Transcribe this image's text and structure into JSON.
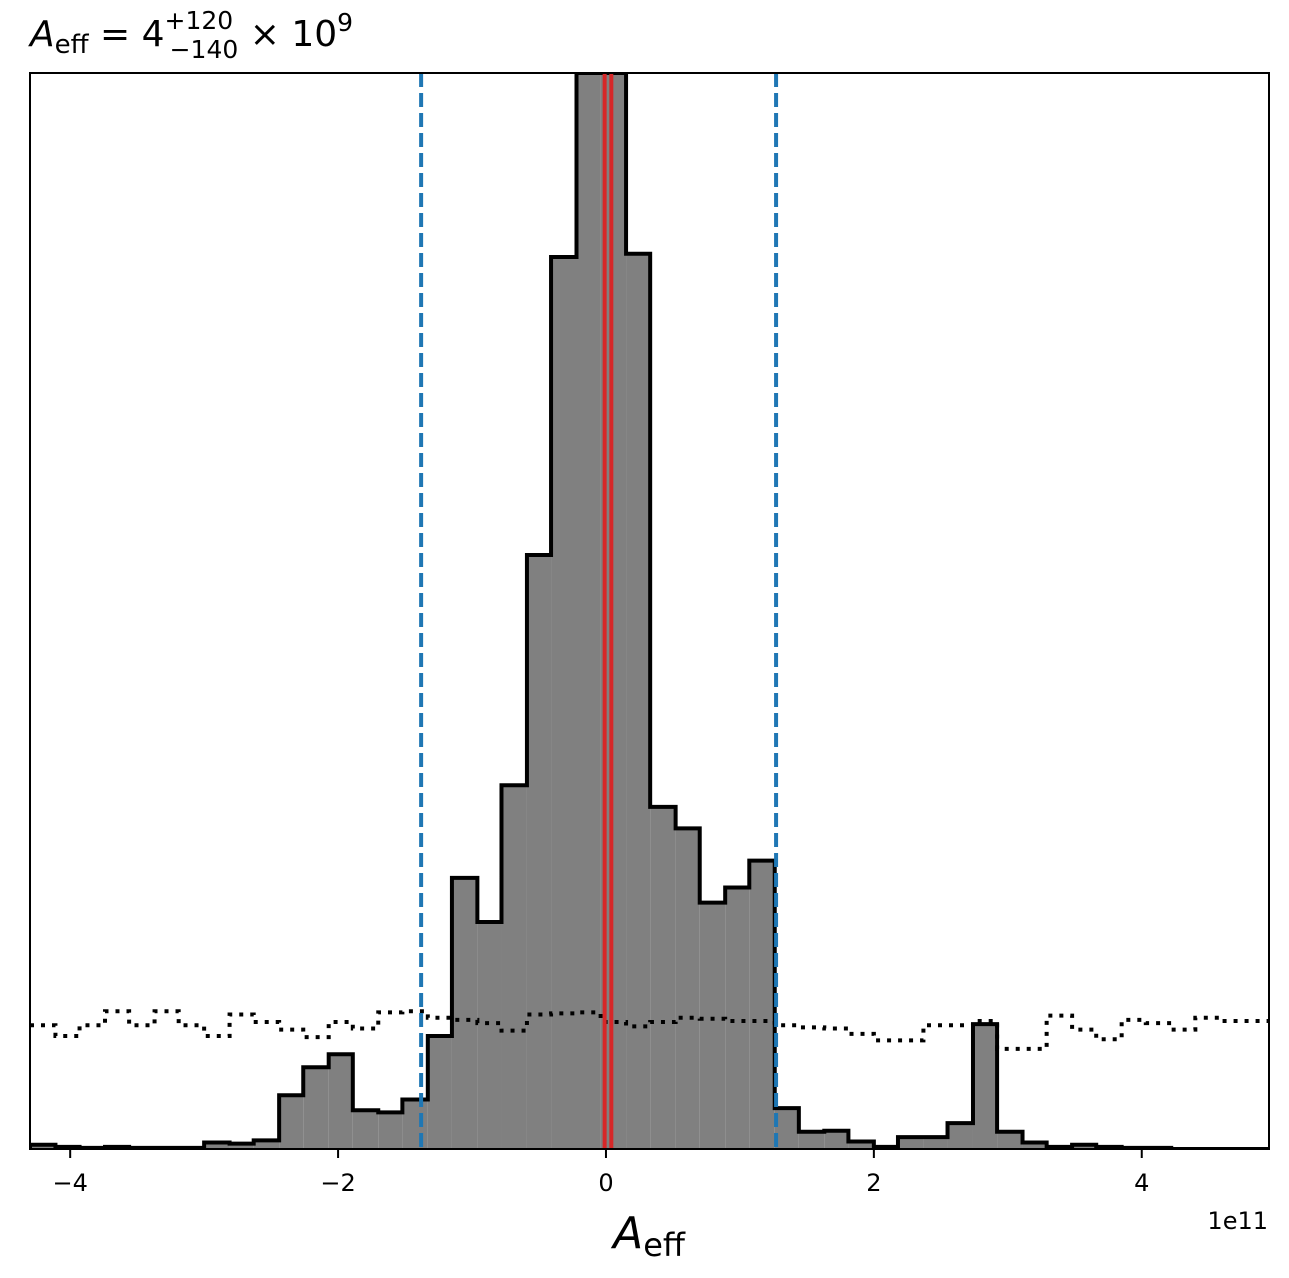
{
  "chart_data": {
    "type": "histogram",
    "title": {
      "symbol": "A",
      "symbol_sub": "eff",
      "equals": " = 4",
      "sup": "+120",
      "sub": "−140",
      "tail": " × 10",
      "tail_sup": "9"
    },
    "xlabel": {
      "symbol": "A",
      "symbol_sub": "eff"
    },
    "offset_text": "1e11",
    "x_scale": 100000000000.0,
    "xlim": [
      -4.3,
      4.95
    ],
    "ylim": [
      0,
      1.0
    ],
    "x_ticks": [
      -4,
      -2,
      0,
      2,
      4
    ],
    "x_tick_labels": [
      "−4",
      "−2",
      "0",
      "2",
      "4"
    ],
    "grid": false,
    "posterior": {
      "name": "posterior",
      "fill_color": "#808080",
      "edge_color": "#000000",
      "bin_edges": [
        -4.3,
        -4.11,
        -3.93,
        -3.74,
        -3.56,
        -3.37,
        -3.19,
        -3.0,
        -2.81,
        -2.63,
        -2.44,
        -2.26,
        -2.07,
        -1.89,
        -1.7,
        -1.52,
        -1.33,
        -1.15,
        -0.96,
        -0.78,
        -0.59,
        -0.41,
        -0.22,
        -0.04,
        0.15,
        0.33,
        0.52,
        0.7,
        0.89,
        1.07,
        1.26,
        1.44,
        1.63,
        1.81,
        2.0,
        2.18,
        2.37,
        2.55,
        2.74,
        2.92,
        3.11,
        3.29,
        3.48,
        3.66,
        3.85,
        4.03,
        4.22,
        4.4,
        4.59,
        4.77,
        4.95
      ],
      "counts": [
        0.004,
        0.002,
        0.001,
        0.002,
        0.001,
        0.001,
        0.001,
        0.006,
        0.005,
        0.008,
        0.05,
        0.076,
        0.088,
        0.036,
        0.034,
        0.046,
        0.105,
        0.252,
        0.211,
        0.338,
        0.552,
        0.829,
        1.0,
        1.0,
        0.832,
        0.318,
        0.298,
        0.229,
        0.243,
        0.268,
        0.038,
        0.016,
        0.017,
        0.007,
        0.002,
        0.011,
        0.011,
        0.024,
        0.116,
        0.016,
        0.006,
        0.002,
        0.004,
        0.002,
        0.001,
        0.001,
        0.0,
        0.0,
        0.0,
        0.0
      ]
    },
    "prior": {
      "name": "prior",
      "style": "dotted",
      "color": "#000000",
      "bin_edges": [
        -4.3,
        -4.11,
        -3.93,
        -3.74,
        -3.56,
        -3.37,
        -3.19,
        -3.0,
        -2.81,
        -2.63,
        -2.44,
        -2.26,
        -2.07,
        -1.89,
        -1.7,
        -1.52,
        -1.33,
        -1.15,
        -0.96,
        -0.78,
        -0.59,
        -0.41,
        -0.22,
        -0.04,
        0.15,
        0.33,
        0.52,
        0.7,
        0.89,
        1.07,
        1.26,
        1.44,
        1.63,
        1.81,
        2.0,
        2.18,
        2.37,
        2.55,
        2.74,
        2.92,
        3.11,
        3.29,
        3.48,
        3.66,
        3.85,
        4.03,
        4.22,
        4.4,
        4.59,
        4.77,
        4.95
      ],
      "counts": [
        0.115,
        0.105,
        0.115,
        0.128,
        0.115,
        0.128,
        0.115,
        0.105,
        0.125,
        0.118,
        0.111,
        0.104,
        0.118,
        0.112,
        0.127,
        0.128,
        0.122,
        0.12,
        0.117,
        0.11,
        0.125,
        0.126,
        0.127,
        0.118,
        0.114,
        0.118,
        0.122,
        0.121,
        0.119,
        0.119,
        0.115,
        0.113,
        0.112,
        0.107,
        0.101,
        0.101,
        0.115,
        0.115,
        0.119,
        0.093,
        0.093,
        0.124,
        0.111,
        0.102,
        0.12,
        0.117,
        0.111,
        0.122,
        0.119,
        0.119
      ]
    },
    "vlines": [
      {
        "name": "median",
        "x": 0.04,
        "color": "#d62728",
        "style": "solid"
      },
      {
        "name": "lower",
        "x": -1.38,
        "color": "#1f77b4",
        "style": "dashed"
      },
      {
        "name": "upper",
        "x": 1.27,
        "color": "#1f77b4",
        "style": "dashed"
      },
      {
        "name": "truth",
        "x": -0.01,
        "color": "#d62728",
        "style": "solid"
      }
    ]
  }
}
